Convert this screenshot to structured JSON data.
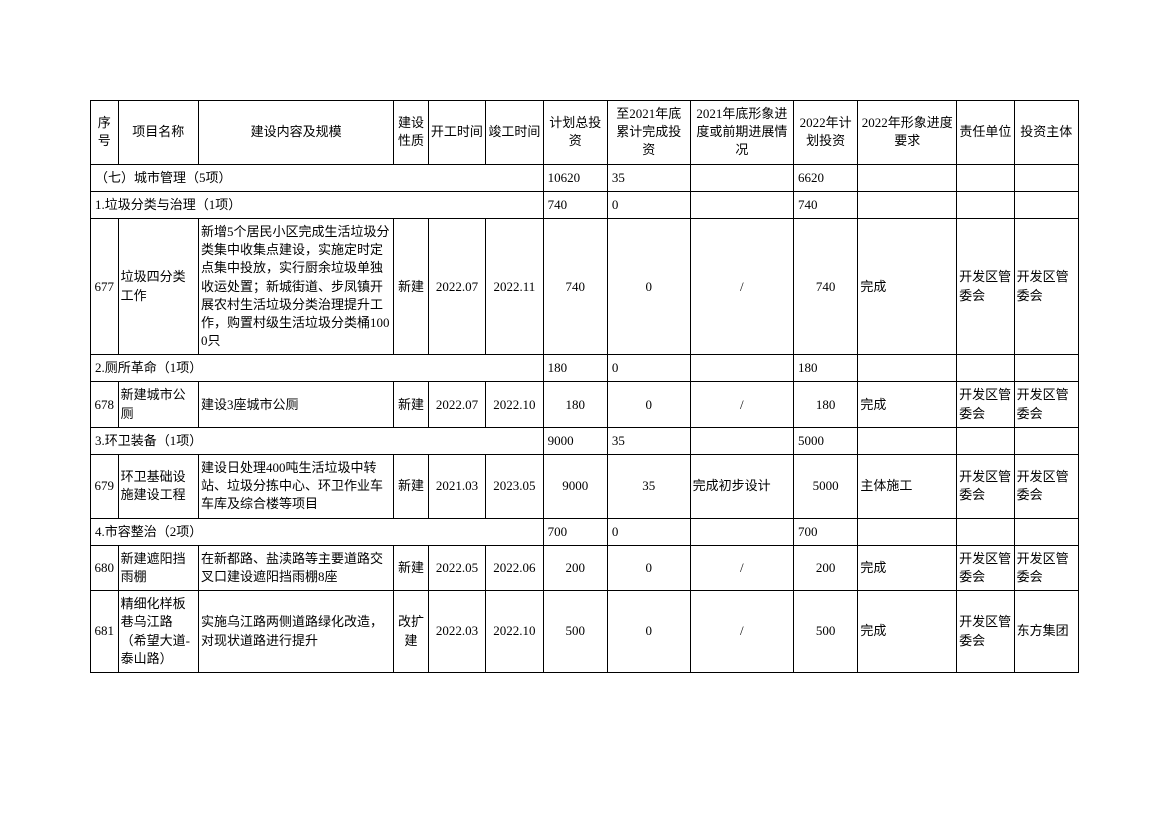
{
  "columns": {
    "seq": "序号",
    "name": "项目名称",
    "desc": "建设内容及规模",
    "nature": "建设性质",
    "start": "开工时间",
    "end": "竣工时间",
    "total": "计划总投资",
    "cumul": "至2021年底累计完成投资",
    "status": "2021年底形象进度或前期进展情况",
    "plan": "2022年计划投资",
    "req": "2022年形象进度要求",
    "resp": "责任单位",
    "invest": "投资主体"
  },
  "sections": [
    {
      "title": "（七）城市管理（5项）",
      "total": "10620",
      "cumul": "35",
      "plan": "6620"
    },
    {
      "title": "1.垃圾分类与治理（1项）",
      "total": "740",
      "cumul": "0",
      "plan": "740"
    }
  ],
  "rows": [
    {
      "seq": "677",
      "name": "垃圾四分类工作",
      "desc": "新增5个居民小区完成生活垃圾分类集中收集点建设，实施定时定点集中投放，实行厨余垃圾单独收运处置；新城街道、步凤镇开展农村生活垃圾分类治理提升工作，购置村级生活垃圾分类桶1000只",
      "nature": "新建",
      "start": "2022.07",
      "end": "2022.11",
      "total": "740",
      "cumul": "0",
      "status": "/",
      "plan": "740",
      "req": "完成",
      "resp": "开发区管委会",
      "invest": "开发区管委会"
    }
  ],
  "section2": {
    "title": "2.厕所革命（1项）",
    "total": "180",
    "cumul": "0",
    "plan": "180"
  },
  "row678": {
    "seq": "678",
    "name": "新建城市公厕",
    "desc": "建设3座城市公厕",
    "nature": "新建",
    "start": "2022.07",
    "end": "2022.10",
    "total": "180",
    "cumul": "0",
    "status": "/",
    "plan": "180",
    "req": "完成",
    "resp": "开发区管委会",
    "invest": "开发区管委会"
  },
  "section3": {
    "title": "3.环卫装备（1项）",
    "total": "9000",
    "cumul": "35",
    "plan": "5000"
  },
  "row679": {
    "seq": "679",
    "name": "环卫基础设施建设工程",
    "desc": "建设日处理400吨生活垃圾中转站、垃圾分拣中心、环卫作业车车库及综合楼等项目",
    "nature": "新建",
    "start": "2021.03",
    "end": "2023.05",
    "total": "9000",
    "cumul": "35",
    "status": "完成初步设计",
    "plan": "5000",
    "req": "主体施工",
    "resp": "开发区管委会",
    "invest": "开发区管委会"
  },
  "section4": {
    "title": "4.市容整治（2项）",
    "total": "700",
    "cumul": "0",
    "plan": "700"
  },
  "row680": {
    "seq": "680",
    "name": "新建遮阳挡雨棚",
    "desc": "在新都路、盐渎路等主要道路交叉口建设遮阳挡雨棚8座",
    "nature": "新建",
    "start": "2022.05",
    "end": "2022.06",
    "total": "200",
    "cumul": "0",
    "status": "/",
    "plan": "200",
    "req": "完成",
    "resp": "开发区管委会",
    "invest": "开发区管委会"
  },
  "row681": {
    "seq": "681",
    "name": "精细化样板巷乌江路（希望大道-泰山路）",
    "desc": "实施乌江路两侧道路绿化改造，对现状道路进行提升",
    "nature": "改扩建",
    "start": "2022.03",
    "end": "2022.10",
    "total": "500",
    "cumul": "0",
    "status": "/",
    "plan": "500",
    "req": "完成",
    "resp": "开发区管委会",
    "invest": "东方集团"
  },
  "style": {
    "font_family": "SimSun",
    "font_size_pt": 10,
    "border_color": "#000000",
    "background_color": "#ffffff",
    "text_color": "#000000"
  }
}
